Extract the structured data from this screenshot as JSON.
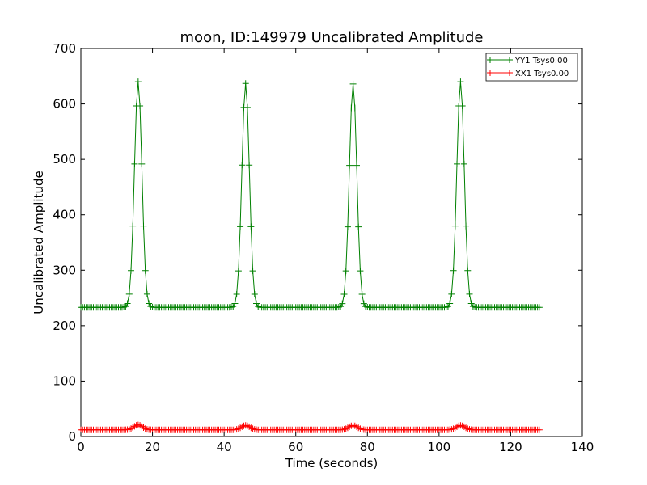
{
  "chart_data": {
    "type": "line",
    "title": "moon, ID:149979 Uncalibrated Amplitude",
    "xlabel": "Time (seconds)",
    "ylabel": "Uncalibrated Amplitude",
    "xlim": [
      0,
      140
    ],
    "ylim": [
      0,
      700
    ],
    "xticks": [
      0,
      20,
      40,
      60,
      80,
      100,
      120,
      140
    ],
    "yticks": [
      0,
      100,
      200,
      300,
      400,
      500,
      600,
      700
    ],
    "grid": false,
    "legend_position": "top-right",
    "marker": "plus",
    "series": [
      {
        "name": "YY1 Tsys0.00",
        "color": "#008000",
        "baseline": 233,
        "peaks": [
          {
            "center": 16,
            "amplitude": 640,
            "sigma": 1.05
          },
          {
            "center": 46,
            "amplitude": 637,
            "sigma": 1.05
          },
          {
            "center": 76,
            "amplitude": 636,
            "sigma": 1.05
          },
          {
            "center": 106,
            "amplitude": 640,
            "sigma": 1.05
          }
        ]
      },
      {
        "name": "XX1 Tsys0.00",
        "color": "#ff0000",
        "baseline": 12,
        "peaks": [
          {
            "center": 16,
            "amplitude": 21,
            "sigma": 1.2
          },
          {
            "center": 46,
            "amplitude": 20,
            "sigma": 1.2
          },
          {
            "center": 76,
            "amplitude": 20,
            "sigma": 1.2
          },
          {
            "center": 106,
            "amplitude": 20,
            "sigma": 1.2
          }
        ]
      }
    ],
    "x_start": 0,
    "x_end": 128,
    "x_step": 0.5
  }
}
